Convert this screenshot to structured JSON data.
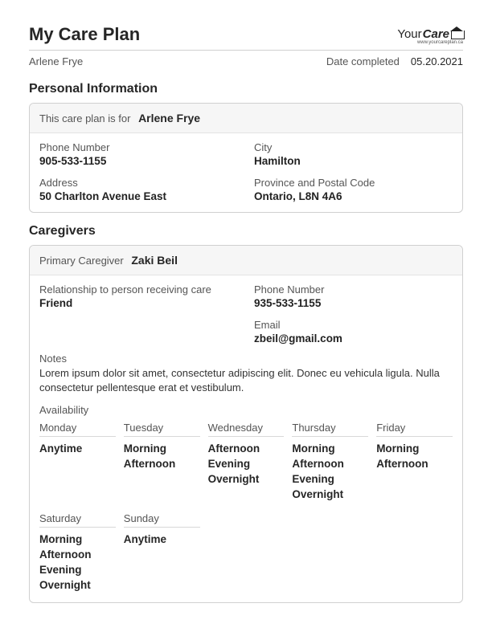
{
  "header": {
    "title": "My Care Plan",
    "logo_your": "Your",
    "logo_care": "Care",
    "logo_sub": "www.yourcareplan.ca",
    "patient_name": "Arlene Frye",
    "date_label": "Date completed",
    "date_value": "05.20.2021"
  },
  "personal": {
    "section_title": "Personal Information",
    "header_prefix": "This care plan is for",
    "header_name": "Arlene Frye",
    "fields": {
      "phone_label": "Phone Number",
      "phone_value": "905-533-1155",
      "city_label": "City",
      "city_value": "Hamilton",
      "address_label": "Address",
      "address_value": "50 Charlton Avenue East",
      "prov_label": "Province and Postal Code",
      "prov_value": "Ontario, L8N 4A6"
    }
  },
  "caregivers": {
    "section_title": "Caregivers",
    "header_prefix": "Primary Caregiver",
    "header_name": "Zaki Beil",
    "relationship_label": "Relationship to person receiving care",
    "relationship_value": "Friend",
    "phone_label": "Phone Number",
    "phone_value": "935-533-1155",
    "email_label": "Email",
    "email_value": "zbeil@gmail.com",
    "notes_label": "Notes",
    "notes_text": "Lorem ipsum dolor sit amet, consectetur adipiscing elit. Donec eu vehicula ligula. Nulla consectetur pellentesque erat et vestibulum.",
    "availability_label": "Availability",
    "days_row1": [
      {
        "day": "Monday",
        "slots": [
          "Anytime"
        ]
      },
      {
        "day": "Tuesday",
        "slots": [
          "Morning",
          "Afternoon"
        ]
      },
      {
        "day": "Wednesday",
        "slots": [
          "Afternoon",
          "Evening",
          "Overnight"
        ]
      },
      {
        "day": "Thursday",
        "slots": [
          "Morning",
          "Afternoon",
          "Evening",
          "Overnight"
        ]
      },
      {
        "day": "Friday",
        "slots": [
          "Morning",
          "Afternoon"
        ]
      }
    ],
    "days_row2": [
      {
        "day": "Saturday",
        "slots": [
          "Morning",
          "Afternoon",
          "Evening",
          "Overnight"
        ]
      },
      {
        "day": "Sunday",
        "slots": [
          "Anytime"
        ]
      }
    ]
  },
  "colors": {
    "border": "#d0d0d0",
    "header_bg": "#f6f6f6",
    "text": "#262626",
    "muted": "#555555"
  }
}
